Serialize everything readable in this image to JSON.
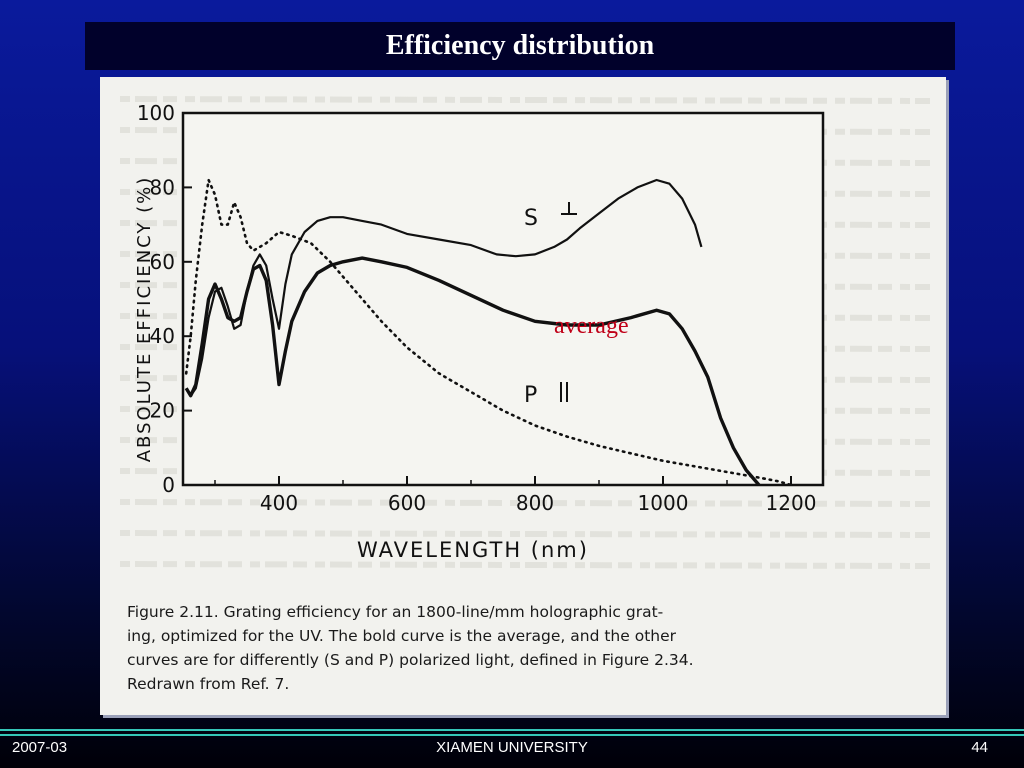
{
  "slide": {
    "title": "Efficiency distribution",
    "footer_left": "2007-03",
    "footer_center": "XIAMEN UNIVERSITY",
    "footer_right": "44"
  },
  "figure": {
    "average_label": "average",
    "s_label": "S",
    "p_label": "P",
    "caption_lines": [
      "Figure 2.11.    Grating efficiency for an 1800-line/mm holographic grat-",
      "ing, optimized for the UV. The bold curve is the average, and the other",
      "curves are for differently (S and P) polarized light, defined in Figure 2.34.",
      "Redrawn from Ref. 7."
    ]
  },
  "chart_data": {
    "type": "line",
    "title": "",
    "xlabel": "WAVELENGTH (nm)",
    "ylabel": "ABSOLUTE EFFICIENCY (%)",
    "xlim": [
      250,
      1250
    ],
    "ylim": [
      0,
      100
    ],
    "x_ticks": [
      400,
      600,
      800,
      1000,
      1200
    ],
    "y_ticks": [
      0,
      20,
      40,
      60,
      80,
      100
    ],
    "grid": false,
    "series": [
      {
        "name": "S ⊥",
        "style": "solid",
        "x": [
          255,
          262,
          270,
          280,
          290,
          300,
          310,
          320,
          330,
          340,
          350,
          360,
          370,
          380,
          390,
          400,
          410,
          420,
          440,
          460,
          480,
          500,
          530,
          560,
          600,
          650,
          700,
          740,
          770,
          800,
          830,
          850,
          870,
          900,
          930,
          960,
          990,
          1010,
          1030,
          1050,
          1060
        ],
        "y": [
          26,
          24,
          26,
          34,
          45,
          52,
          53,
          48,
          42,
          43,
          52,
          59,
          62,
          59,
          50,
          42,
          54,
          62,
          68,
          71,
          72,
          72,
          71,
          70,
          67.5,
          66,
          64.5,
          62,
          61.5,
          62,
          64,
          66,
          69,
          73,
          77,
          80,
          82,
          81,
          77,
          70,
          64
        ]
      },
      {
        "name": "average",
        "style": "bold",
        "x": [
          255,
          262,
          270,
          280,
          290,
          300,
          310,
          320,
          330,
          340,
          350,
          360,
          370,
          380,
          390,
          400,
          410,
          420,
          440,
          460,
          480,
          500,
          530,
          560,
          600,
          650,
          700,
          750,
          800,
          850,
          900,
          950,
          990,
          1010,
          1030,
          1050,
          1070,
          1090,
          1110,
          1130,
          1150
        ],
        "y": [
          26,
          24,
          27,
          38,
          50,
          54,
          50,
          45,
          44,
          45,
          52,
          58,
          59,
          55,
          43,
          27,
          36,
          44,
          52,
          57,
          59,
          60,
          61,
          60,
          58.5,
          55,
          51,
          47,
          44,
          43,
          43,
          45,
          47,
          46,
          42,
          36,
          29,
          18,
          10,
          4,
          0
        ]
      },
      {
        "name": "P ||",
        "style": "dotted",
        "x": [
          255,
          262,
          270,
          280,
          290,
          300,
          310,
          320,
          330,
          340,
          350,
          360,
          380,
          400,
          420,
          450,
          480,
          500,
          530,
          560,
          600,
          650,
          700,
          750,
          800,
          850,
          900,
          950,
          1000,
          1050,
          1100,
          1150,
          1180,
          1200
        ],
        "y": [
          30,
          40,
          55,
          70,
          82,
          78,
          70,
          70,
          76,
          72,
          65,
          63,
          65,
          68,
          67,
          65,
          60,
          56,
          50,
          44,
          37,
          30,
          25,
          20,
          16,
          13,
          10.5,
          8.5,
          6.5,
          5,
          3.5,
          2,
          1,
          0
        ]
      }
    ]
  }
}
